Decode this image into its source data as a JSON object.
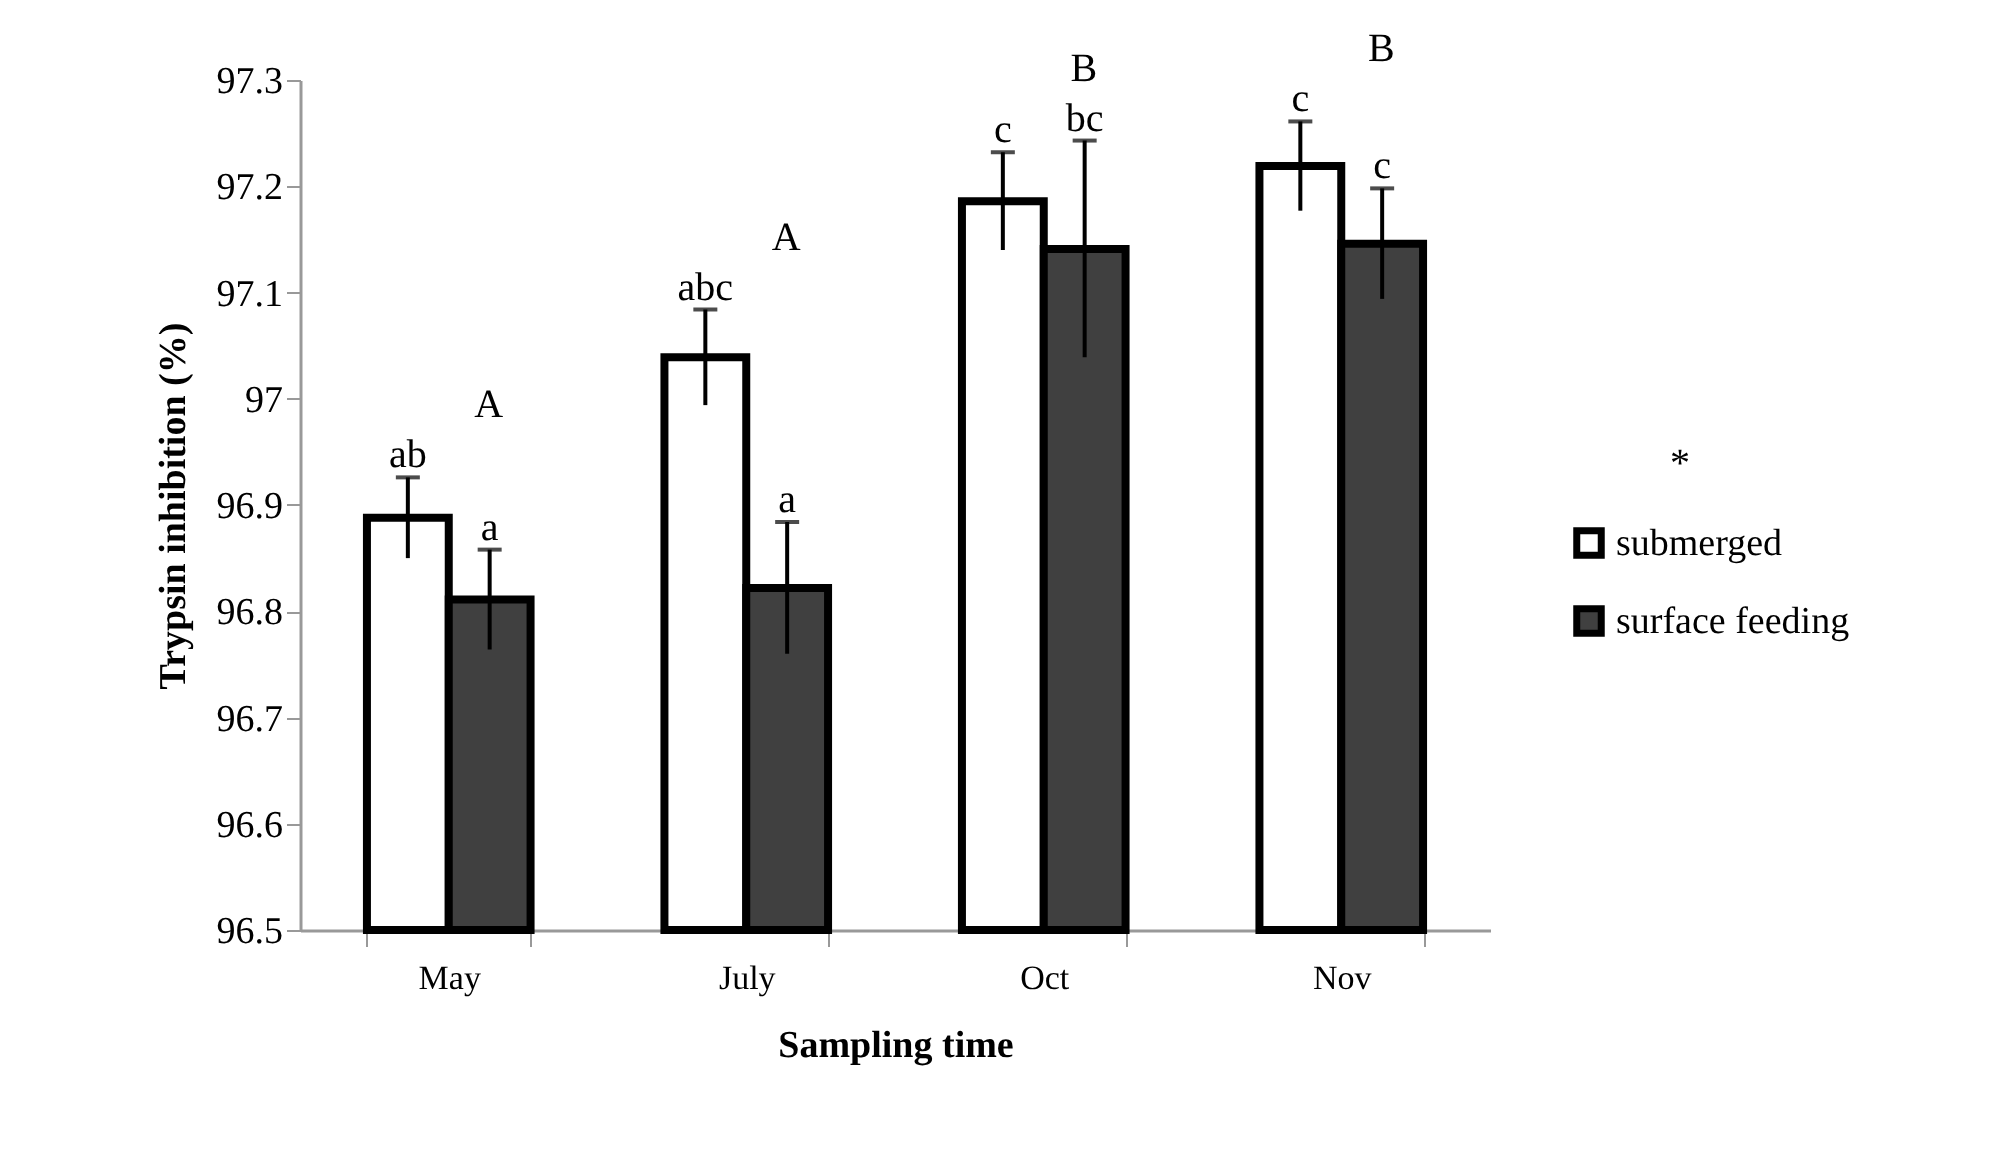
{
  "chart_data": {
    "type": "bar",
    "xlabel": "Sampling time",
    "ylabel": "Trypsin inhibition (%)",
    "categories": [
      "May",
      "July",
      "Oct",
      "Nov"
    ],
    "series": [
      {
        "name": "submerged",
        "color": "#ffffff",
        "values": [
          96.888,
          97.039,
          97.186,
          97.219
        ],
        "errors": [
          0.038,
          0.045,
          0.046,
          0.042
        ]
      },
      {
        "name": "surface feeding",
        "color": "#404040",
        "values": [
          96.811,
          96.822,
          97.141,
          97.146
        ],
        "errors": [
          0.047,
          0.062,
          0.102,
          0.052
        ]
      }
    ],
    "ylim": [
      96.5,
      97.3
    ],
    "yticks": [
      96.5,
      96.6,
      96.7,
      96.8,
      96.9,
      {
        "value": 97,
        "label": "97"
      },
      97.1,
      97.2,
      97.3
    ],
    "grid": false,
    "legend": "right",
    "annotations": [
      "ab",
      "a",
      "A",
      "abc",
      "a",
      "A",
      "c",
      "bc",
      "B",
      "c",
      "c",
      "B",
      "*"
    ]
  }
}
